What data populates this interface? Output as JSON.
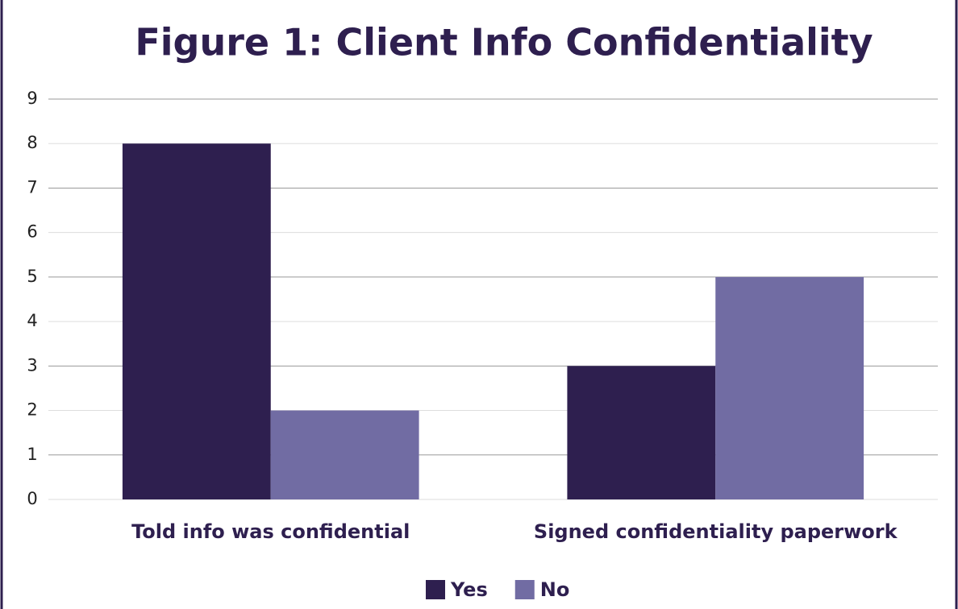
{
  "chart_data": {
    "type": "bar",
    "title": "Figure 1: Client Info Confidentiality",
    "categories": [
      "Told info was confidential",
      "Signed confidentiality paperwork"
    ],
    "series": [
      {
        "name": "Yes",
        "color": "#2e1f4f",
        "values": [
          8,
          3
        ]
      },
      {
        "name": "No",
        "color": "#716ca3",
        "values": [
          2,
          5
        ]
      }
    ],
    "ylim": [
      0,
      9
    ],
    "yticks": [
      0,
      1,
      2,
      3,
      4,
      5,
      6,
      7,
      8,
      9
    ],
    "grid": true,
    "legend": "bottom"
  }
}
